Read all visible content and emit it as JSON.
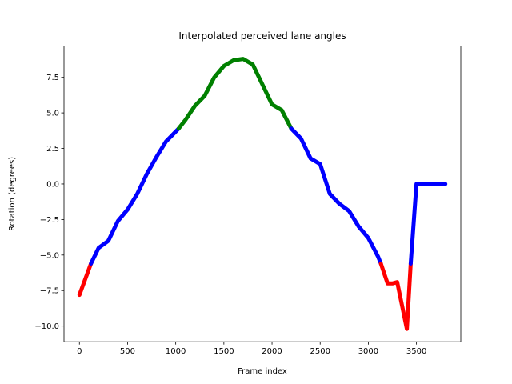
{
  "chart_data": {
    "type": "line",
    "title": "Interpolated perceived lane angles",
    "xlabel": "Frame index",
    "ylabel": "Rotation (degrees)",
    "xlim": [
      -160,
      3960
    ],
    "ylim": [
      -11.1,
      9.7
    ],
    "xticks": [
      0,
      500,
      1000,
      1500,
      2000,
      2500,
      3000,
      3500
    ],
    "yticks": [
      -10.0,
      -7.5,
      -5.0,
      -2.5,
      0.0,
      2.5,
      5.0,
      7.5
    ],
    "xtick_labels": [
      "0",
      "500",
      "1000",
      "1500",
      "2000",
      "2500",
      "3000",
      "3500"
    ],
    "ytick_labels": [
      "−10.0",
      "−7.5",
      "−5.0",
      "−2.5",
      "0.0",
      "2.5",
      "5.0",
      "7.5"
    ],
    "grid": false,
    "colors": {
      "red": "#ff0000",
      "blue": "#0000ff",
      "green": "#008000"
    },
    "series": [
      {
        "color": "red",
        "points": [
          [
            0,
            -7.8
          ],
          [
            120,
            -5.6
          ]
        ]
      },
      {
        "color": "blue",
        "points": [
          [
            120,
            -5.6
          ],
          [
            200,
            -4.5
          ],
          [
            300,
            -4.0
          ],
          [
            400,
            -2.6
          ],
          [
            500,
            -1.8
          ],
          [
            600,
            -0.7
          ],
          [
            700,
            0.7
          ],
          [
            800,
            1.9
          ],
          [
            900,
            3.0
          ],
          [
            1030,
            3.9
          ]
        ]
      },
      {
        "color": "green",
        "points": [
          [
            1030,
            3.9
          ],
          [
            1100,
            4.5
          ],
          [
            1200,
            5.5
          ],
          [
            1300,
            6.2
          ],
          [
            1400,
            7.5
          ],
          [
            1500,
            8.3
          ],
          [
            1600,
            8.7
          ],
          [
            1700,
            8.8
          ],
          [
            1800,
            8.4
          ],
          [
            1900,
            7.0
          ],
          [
            2000,
            5.6
          ],
          [
            2100,
            5.2
          ],
          [
            2200,
            3.9
          ]
        ]
      },
      {
        "color": "blue",
        "points": [
          [
            2200,
            3.9
          ],
          [
            2300,
            3.2
          ],
          [
            2400,
            1.8
          ],
          [
            2500,
            1.4
          ],
          [
            2600,
            -0.7
          ],
          [
            2700,
            -1.4
          ],
          [
            2800,
            -1.9
          ],
          [
            2900,
            -3.0
          ],
          [
            3000,
            -3.8
          ],
          [
            3100,
            -5.1
          ],
          [
            3130,
            -5.6
          ]
        ]
      },
      {
        "color": "red",
        "points": [
          [
            3130,
            -5.6
          ],
          [
            3200,
            -7.0
          ],
          [
            3250,
            -7.0
          ],
          [
            3300,
            -6.9
          ],
          [
            3400,
            -10.2
          ],
          [
            3440,
            -5.6
          ]
        ]
      },
      {
        "color": "blue",
        "points": [
          [
            3440,
            -5.6
          ],
          [
            3500,
            0.0
          ],
          [
            3800,
            0.0
          ]
        ]
      }
    ]
  }
}
